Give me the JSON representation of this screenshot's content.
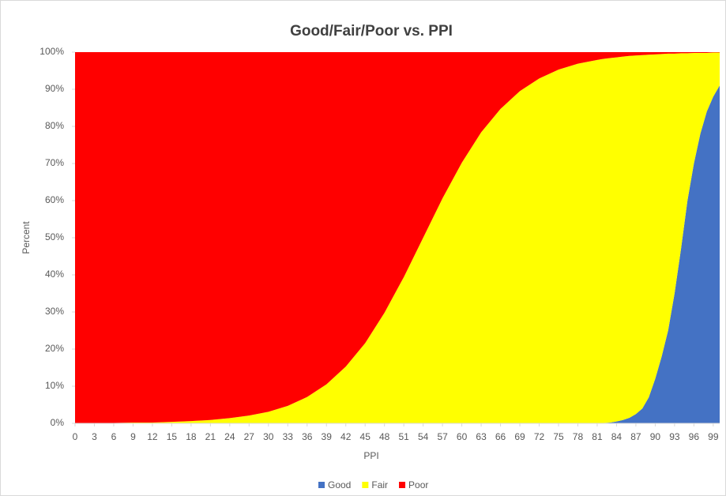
{
  "chart_data": {
    "type": "area",
    "stacked": true,
    "title": "Good/Fair/Poor vs. PPI",
    "xlabel": "PPI",
    "ylabel": "Percent",
    "x": [
      0,
      3,
      6,
      9,
      12,
      15,
      18,
      21,
      24,
      27,
      30,
      33,
      36,
      39,
      42,
      45,
      48,
      51,
      54,
      57,
      60,
      63,
      66,
      69,
      72,
      75,
      78,
      81,
      82,
      83,
      84,
      85,
      86,
      87,
      88,
      89,
      90,
      91,
      92,
      93,
      94,
      95,
      96,
      97,
      98,
      99,
      100
    ],
    "series": [
      {
        "name": "Good",
        "color": "#4472c4",
        "values": [
          0,
          0,
          0,
          0,
          0,
          0,
          0,
          0,
          0,
          0,
          0,
          0,
          0,
          0,
          0,
          0,
          0,
          0,
          0,
          0,
          0,
          0,
          0,
          0,
          0,
          0,
          0,
          0,
          0.1,
          0.2,
          0.5,
          0.9,
          1.5,
          2.5,
          4,
          7,
          12,
          18,
          25,
          35,
          47,
          60,
          70,
          78,
          84,
          88,
          91
        ]
      },
      {
        "name": "Fair",
        "color": "#ffff00",
        "values": [
          0,
          0.1,
          0.1,
          0.2,
          0.2,
          0.4,
          0.6,
          0.9,
          1.4,
          2.1,
          3.1,
          4.7,
          7.1,
          10.5,
          15.3,
          21.6,
          29.8,
          39.4,
          50,
          60.6,
          70.2,
          78.4,
          84.7,
          89.5,
          92.9,
          95.3,
          96.9,
          97.9,
          98.1,
          98.2,
          98.1,
          97.9,
          97.5,
          96.6,
          95.2,
          92.3,
          87.4,
          81.5,
          74.6,
          64.6,
          52.7,
          39.7,
          29.8,
          21.8,
          15.8,
          11.9,
          8.9
        ]
      },
      {
        "name": "Poor",
        "color": "#ff0000",
        "values": [
          100,
          99.9,
          99.9,
          99.8,
          99.8,
          99.6,
          99.4,
          99.1,
          98.6,
          97.9,
          96.9,
          95.3,
          92.9,
          89.5,
          84.7,
          78.4,
          70.2,
          60.6,
          50,
          39.4,
          29.8,
          21.6,
          15.3,
          10.5,
          7.1,
          4.7,
          3.1,
          2.1,
          1.8,
          1.6,
          1.4,
          1.2,
          1.0,
          0.9,
          0.8,
          0.7,
          0.6,
          0.5,
          0.4,
          0.4,
          0.3,
          0.3,
          0.2,
          0.2,
          0.2,
          0.1,
          0.1
        ]
      }
    ],
    "xlim": [
      0,
      100
    ],
    "xticks": [
      0,
      3,
      6,
      9,
      12,
      15,
      18,
      21,
      24,
      27,
      30,
      33,
      36,
      39,
      42,
      45,
      48,
      51,
      54,
      57,
      60,
      63,
      66,
      69,
      72,
      75,
      78,
      81,
      84,
      87,
      90,
      93,
      96,
      99
    ],
    "ylim": [
      0,
      100
    ],
    "yticks": [
      {
        "value": 0,
        "label": "0%"
      },
      {
        "value": 10,
        "label": "10%"
      },
      {
        "value": 20,
        "label": "20%"
      },
      {
        "value": 30,
        "label": "30%"
      },
      {
        "value": 40,
        "label": "40%"
      },
      {
        "value": 50,
        "label": "50%"
      },
      {
        "value": 60,
        "label": "60%"
      },
      {
        "value": 70,
        "label": "70%"
      },
      {
        "value": 80,
        "label": "80%"
      },
      {
        "value": 90,
        "label": "90%"
      },
      {
        "value": 100,
        "label": "100%"
      }
    ],
    "legend": "bottom"
  }
}
